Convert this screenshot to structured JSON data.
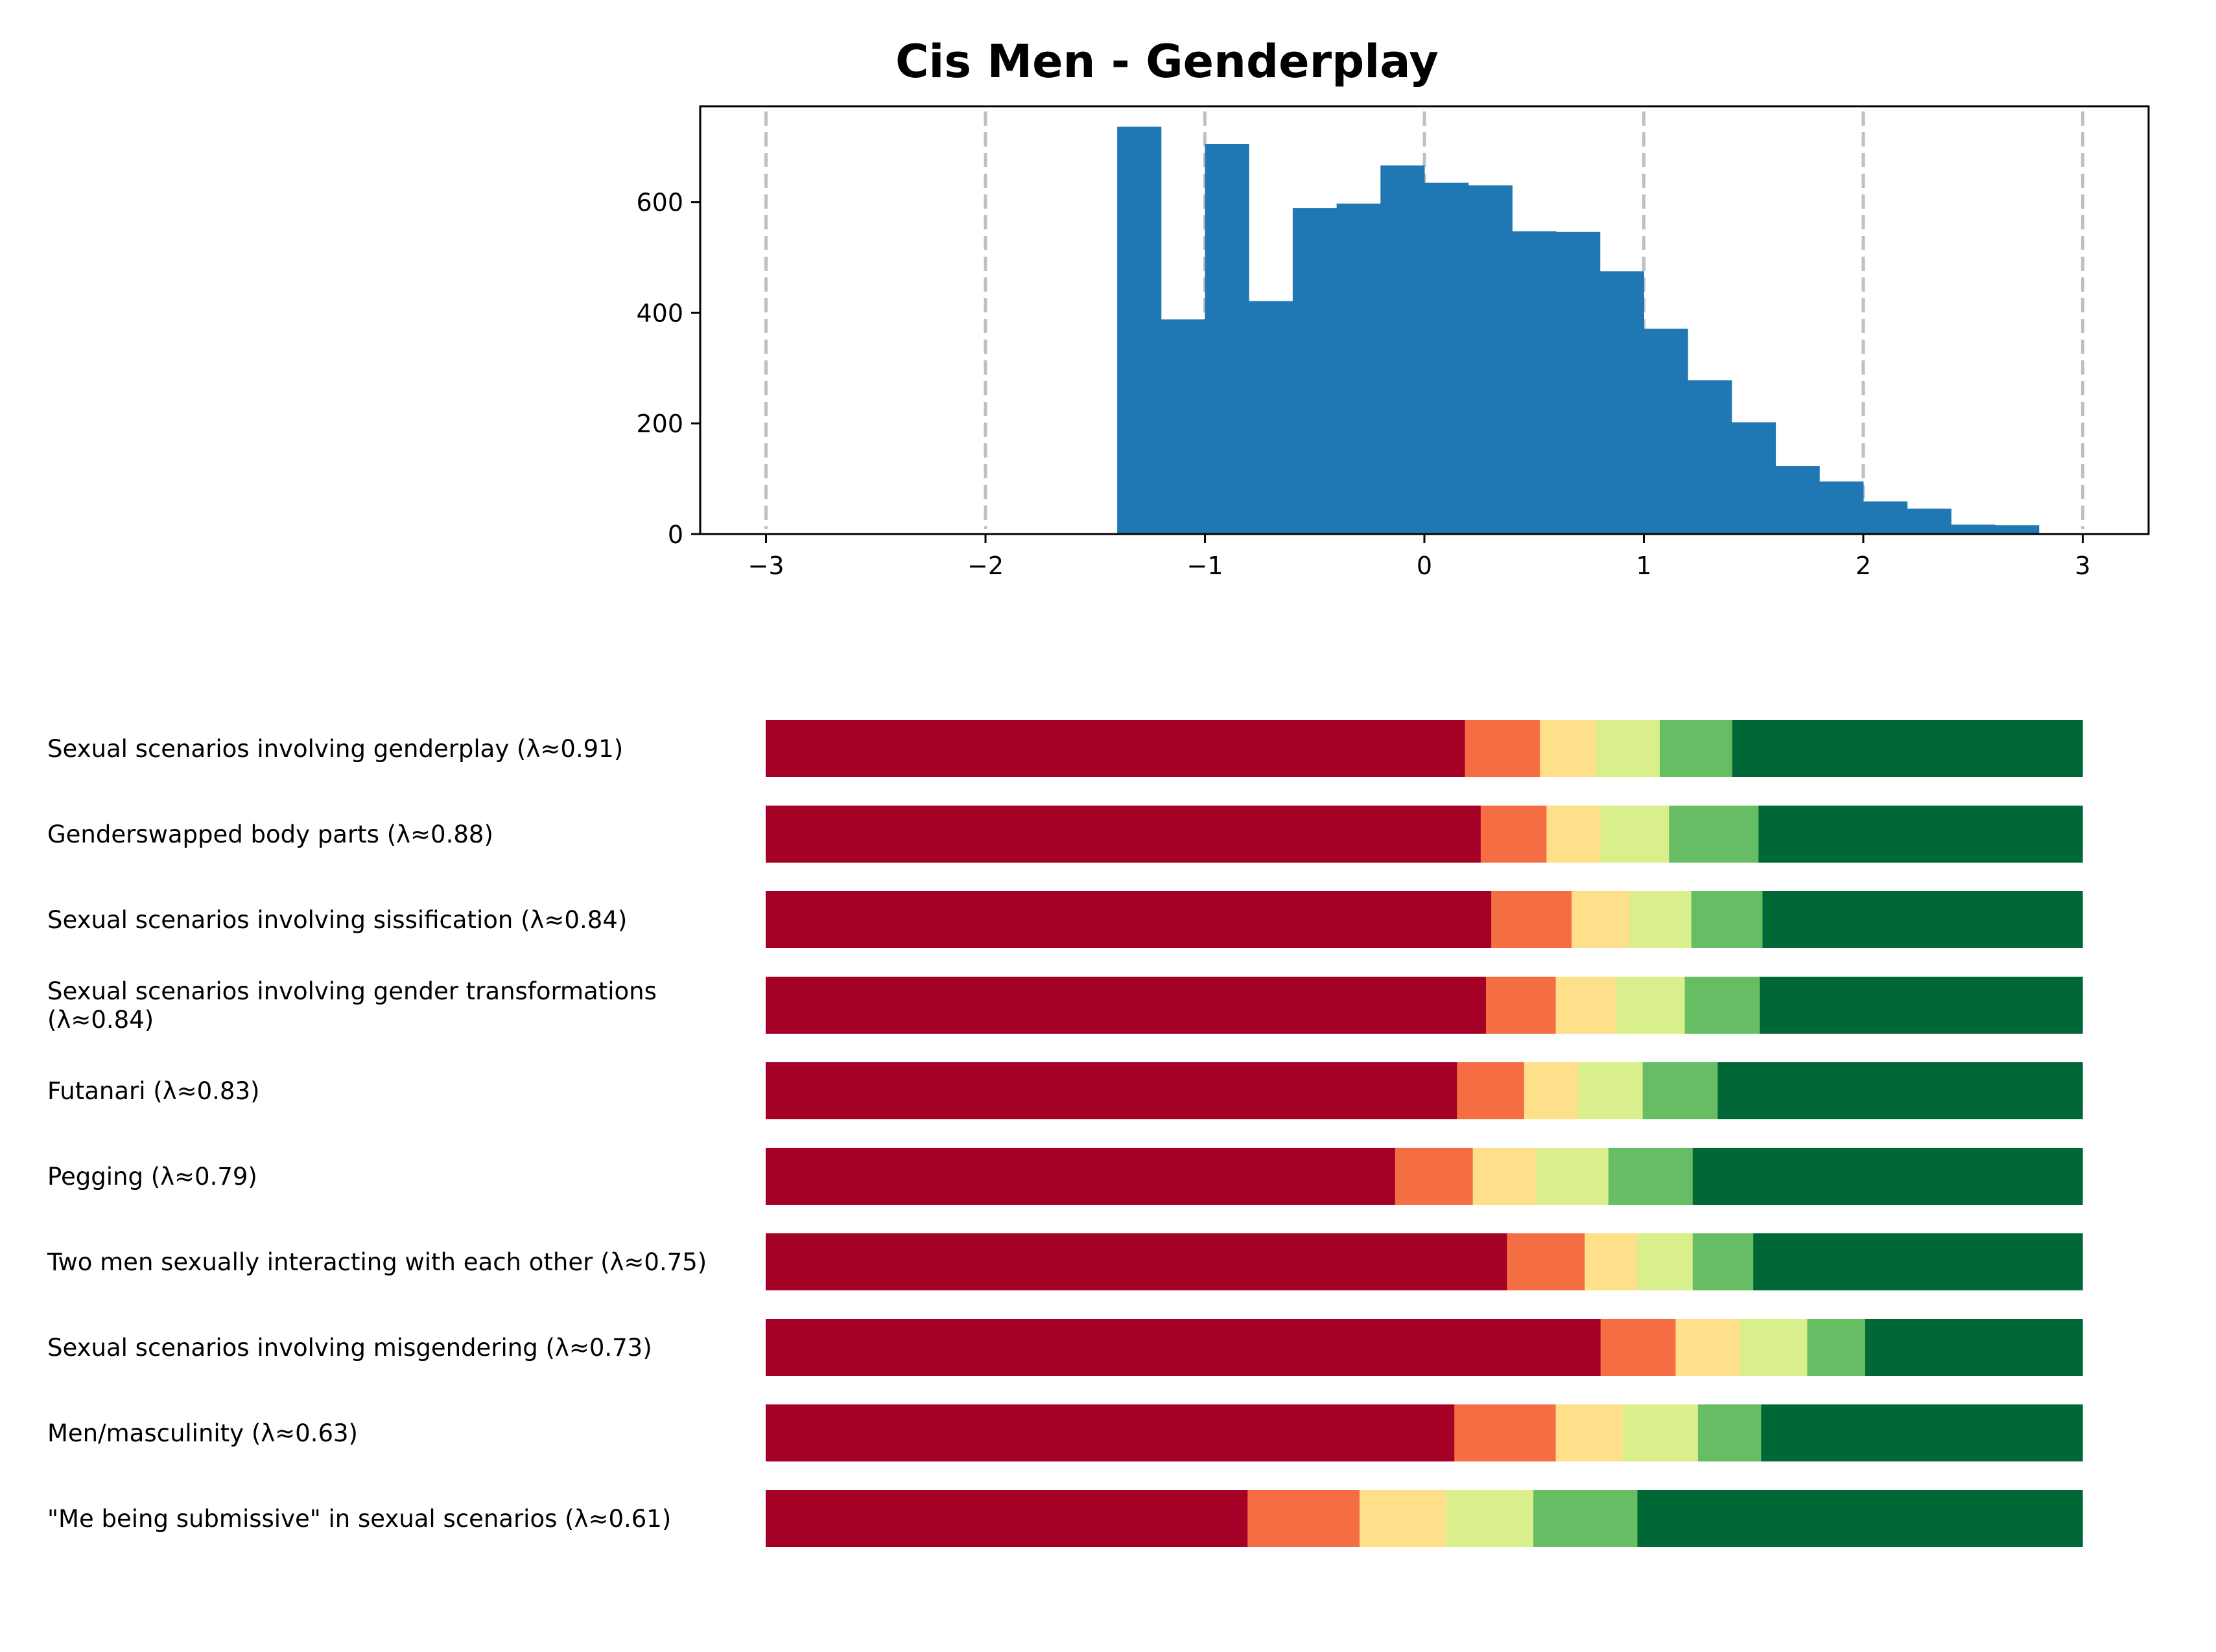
{
  "chart_data": [
    {
      "type": "bar",
      "subtype": "histogram",
      "title": "Cis Men - Genderplay",
      "xlabel": "",
      "ylabel": "",
      "bin_edges": [
        -1.4,
        -1.2,
        -1.0,
        -0.8,
        -0.6,
        -0.4,
        -0.2,
        0.0,
        0.2,
        0.4,
        0.6,
        0.8,
        1.0,
        1.2,
        1.4,
        1.6,
        1.8,
        2.0,
        2.2,
        2.4,
        2.6,
        2.8
      ],
      "values": [
        736,
        388,
        705,
        421,
        589,
        597,
        666,
        635,
        630,
        547,
        546,
        475,
        371,
        278,
        202,
        123,
        95,
        59,
        46,
        17,
        16
      ],
      "xlim": [
        -3.3,
        3.3
      ],
      "ylim": [
        0,
        773
      ],
      "xticks": [
        -3,
        -2,
        -1,
        0,
        1,
        2,
        3
      ],
      "xtick_labels": [
        "−3",
        "−2",
        "−1",
        "0",
        "1",
        "2",
        "3"
      ],
      "yticks": [
        0,
        200,
        400,
        600
      ],
      "ytick_labels": [
        "0",
        "200",
        "400",
        "600"
      ],
      "vlines_dashed_at": [
        -3,
        -2,
        -1,
        0,
        1,
        2,
        3
      ],
      "grid": false,
      "color": "#1f77b4",
      "vline_color": "#c0c0c0"
    },
    {
      "type": "bar",
      "subtype": "stacked-horizontal-100",
      "title": "",
      "legend": "none",
      "segment_colors": [
        "#a50026",
        "#f46d43",
        "#fee08b",
        "#d9ef8b",
        "#66bd63",
        "#006837"
      ],
      "categories": [
        "Sexual scenarios involving genderplay (λ≈0.91)",
        "Genderswapped body parts (λ≈0.88)",
        "Sexual scenarios involving sissification (λ≈0.84)",
        "Sexual scenarios involving gender transformations\n(λ≈0.84)",
        "Futanari (λ≈0.83)",
        "Pegging (λ≈0.79)",
        "Two men sexually interacting with each other (λ≈0.75)",
        "Sexual scenarios involving misgendering (λ≈0.73)",
        "Men/masculinity (λ≈0.63)",
        "\"Me being submissive\" in sexual scenarios (λ≈0.61)"
      ],
      "label_lines": [
        [
          "Sexual scenarios involving genderplay (λ≈0.91)"
        ],
        [
          "Genderswapped body parts (λ≈0.88)"
        ],
        [
          "Sexual scenarios involving sissification (λ≈0.84)"
        ],
        [
          "Sexual scenarios involving gender transformations",
          "(λ≈0.84)"
        ],
        [
          "Futanari (λ≈0.83)"
        ],
        [
          "Pegging (λ≈0.79)"
        ],
        [
          "Two men sexually interacting with each other (λ≈0.75)"
        ],
        [
          "Sexual scenarios involving misgendering (λ≈0.73)"
        ],
        [
          "Men/masculinity (λ≈0.63)"
        ],
        [
          "\"Me being submissive\" in sexual scenarios (λ≈0.61)"
        ]
      ],
      "series": [
        {
          "name": "level-1",
          "values": [
            0.531,
            0.543,
            0.551,
            0.547,
            0.525,
            0.478,
            0.563,
            0.634,
            0.523,
            0.366
          ]
        },
        {
          "name": "level-2",
          "values": [
            0.057,
            0.05,
            0.061,
            0.053,
            0.051,
            0.059,
            0.059,
            0.057,
            0.077,
            0.085
          ]
        },
        {
          "name": "level-3",
          "values": [
            0.043,
            0.041,
            0.044,
            0.046,
            0.041,
            0.048,
            0.04,
            0.049,
            0.051,
            0.066
          ]
        },
        {
          "name": "level-4",
          "values": [
            0.048,
            0.052,
            0.047,
            0.052,
            0.049,
            0.055,
            0.042,
            0.051,
            0.057,
            0.066
          ]
        },
        {
          "name": "level-5",
          "values": [
            0.055,
            0.068,
            0.054,
            0.057,
            0.057,
            0.064,
            0.046,
            0.044,
            0.048,
            0.079
          ]
        },
        {
          "name": "level-6",
          "values": [
            0.266,
            0.246,
            0.243,
            0.245,
            0.277,
            0.296,
            0.25,
            0.165,
            0.244,
            0.338
          ]
        }
      ],
      "xlim": [
        0,
        1
      ]
    }
  ]
}
